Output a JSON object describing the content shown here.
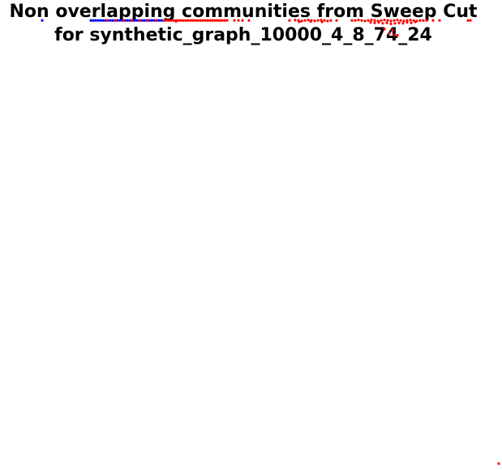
{
  "chart_data": {
    "type": "scatter",
    "title_lines": [
      "Non overlapping communities from Sweep Cut",
      "for synthetic_graph_10000_4_8_74_24"
    ],
    "xlabel": "",
    "ylabel": "",
    "axes_visible": false,
    "grid": false,
    "legend": "none",
    "xlim": [
      0,
      1
    ],
    "ylim": [
      0,
      1
    ],
    "series": [
      {
        "color": "#0000ff",
        "points": [
          [
            0.05,
            0.94
          ],
          [
            0.11,
            0.94
          ],
          [
            0.113,
            0.94
          ],
          [
            0.116,
            0.94
          ],
          [
            0.119,
            0.94
          ],
          [
            0.122,
            0.94
          ],
          [
            0.125,
            0.94
          ],
          [
            0.128,
            0.94
          ],
          [
            0.131,
            0.94
          ],
          [
            0.134,
            0.94
          ],
          [
            0.137,
            0.94
          ],
          [
            0.14,
            0.94
          ],
          [
            0.143,
            0.94
          ],
          [
            0.146,
            0.94
          ],
          [
            0.149,
            0.94
          ],
          [
            0.152,
            0.94
          ],
          [
            0.155,
            0.94
          ],
          [
            0.158,
            0.94
          ],
          [
            0.161,
            0.94
          ],
          [
            0.164,
            0.94
          ],
          [
            0.167,
            0.94
          ],
          [
            0.17,
            0.94
          ],
          [
            0.173,
            0.94
          ],
          [
            0.176,
            0.94
          ],
          [
            0.179,
            0.94
          ],
          [
            0.182,
            0.94
          ],
          [
            0.185,
            0.94
          ],
          [
            0.188,
            0.94
          ],
          [
            0.191,
            0.94
          ],
          [
            0.194,
            0.94
          ],
          [
            0.197,
            0.94
          ],
          [
            0.2,
            0.94
          ]
        ]
      },
      {
        "color": "#ff0000",
        "points": [
          [
            0.13,
            0.94
          ],
          [
            0.14,
            0.94
          ],
          [
            0.15,
            0.94
          ],
          [
            0.16,
            0.94
          ],
          [
            0.17,
            0.94
          ],
          [
            0.18,
            0.94
          ],
          [
            0.19,
            0.94
          ],
          [
            0.2,
            0.94
          ],
          [
            0.203,
            0.94
          ],
          [
            0.206,
            0.94
          ],
          [
            0.209,
            0.94
          ],
          [
            0.212,
            0.94
          ],
          [
            0.215,
            0.94
          ],
          [
            0.218,
            0.94
          ],
          [
            0.221,
            0.94
          ],
          [
            0.224,
            0.94
          ],
          [
            0.227,
            0.94
          ],
          [
            0.23,
            0.94
          ],
          [
            0.233,
            0.94
          ],
          [
            0.236,
            0.94
          ],
          [
            0.239,
            0.94
          ],
          [
            0.242,
            0.94
          ],
          [
            0.245,
            0.94
          ],
          [
            0.248,
            0.94
          ],
          [
            0.251,
            0.94
          ],
          [
            0.254,
            0.94
          ],
          [
            0.257,
            0.94
          ],
          [
            0.26,
            0.94
          ],
          [
            0.263,
            0.94
          ],
          [
            0.266,
            0.94
          ],
          [
            0.269,
            0.94
          ],
          [
            0.272,
            0.94
          ],
          [
            0.275,
            0.94
          ],
          [
            0.278,
            0.94
          ],
          [
            0.215,
            0.938
          ],
          [
            0.287,
            0.94
          ],
          [
            0.292,
            0.94
          ],
          [
            0.297,
            0.94
          ],
          [
            0.305,
            0.94
          ],
          [
            0.355,
            0.94
          ],
          [
            0.362,
            0.941
          ],
          [
            0.366,
            0.94
          ],
          [
            0.37,
            0.939
          ],
          [
            0.374,
            0.94
          ],
          [
            0.378,
            0.941
          ],
          [
            0.382,
            0.94
          ],
          [
            0.386,
            0.939
          ],
          [
            0.39,
            0.94
          ],
          [
            0.394,
            0.941
          ],
          [
            0.398,
            0.94
          ],
          [
            0.402,
            0.939
          ],
          [
            0.406,
            0.94
          ],
          [
            0.413,
            0.94
          ],
          [
            0.367,
            0.937
          ],
          [
            0.381,
            0.938
          ],
          [
            0.395,
            0.937
          ],
          [
            0.432,
            0.94
          ],
          [
            0.436,
            0.94
          ],
          [
            0.44,
            0.941
          ],
          [
            0.444,
            0.94
          ],
          [
            0.448,
            0.939
          ],
          [
            0.452,
            0.94
          ],
          [
            0.456,
            0.941
          ],
          [
            0.46,
            0.94
          ],
          [
            0.464,
            0.939
          ],
          [
            0.468,
            0.94
          ],
          [
            0.472,
            0.941
          ],
          [
            0.476,
            0.94
          ],
          [
            0.48,
            0.939
          ],
          [
            0.484,
            0.94
          ],
          [
            0.488,
            0.941
          ],
          [
            0.492,
            0.94
          ],
          [
            0.496,
            0.939
          ],
          [
            0.5,
            0.94
          ],
          [
            0.504,
            0.941
          ],
          [
            0.508,
            0.94
          ],
          [
            0.512,
            0.939
          ],
          [
            0.516,
            0.94
          ],
          [
            0.52,
            0.94
          ],
          [
            0.524,
            0.94
          ],
          [
            0.455,
            0.936
          ],
          [
            0.46,
            0.935
          ],
          [
            0.465,
            0.936
          ],
          [
            0.47,
            0.934
          ],
          [
            0.475,
            0.935
          ],
          [
            0.48,
            0.933
          ],
          [
            0.485,
            0.934
          ],
          [
            0.49,
            0.935
          ],
          [
            0.495,
            0.934
          ],
          [
            0.5,
            0.936
          ],
          [
            0.505,
            0.935
          ],
          [
            0.51,
            0.937
          ],
          [
            0.472,
            0.922
          ],
          [
            0.482,
            0.92
          ],
          [
            0.478,
            0.913
          ],
          [
            0.484,
            0.91
          ],
          [
            0.488,
            0.909
          ],
          [
            0.532,
            0.94
          ],
          [
            0.54,
            0.94
          ],
          [
            0.575,
            0.94
          ],
          [
            0.578,
            0.94
          ],
          [
            0.613,
            0.01
          ]
        ]
      }
    ]
  }
}
